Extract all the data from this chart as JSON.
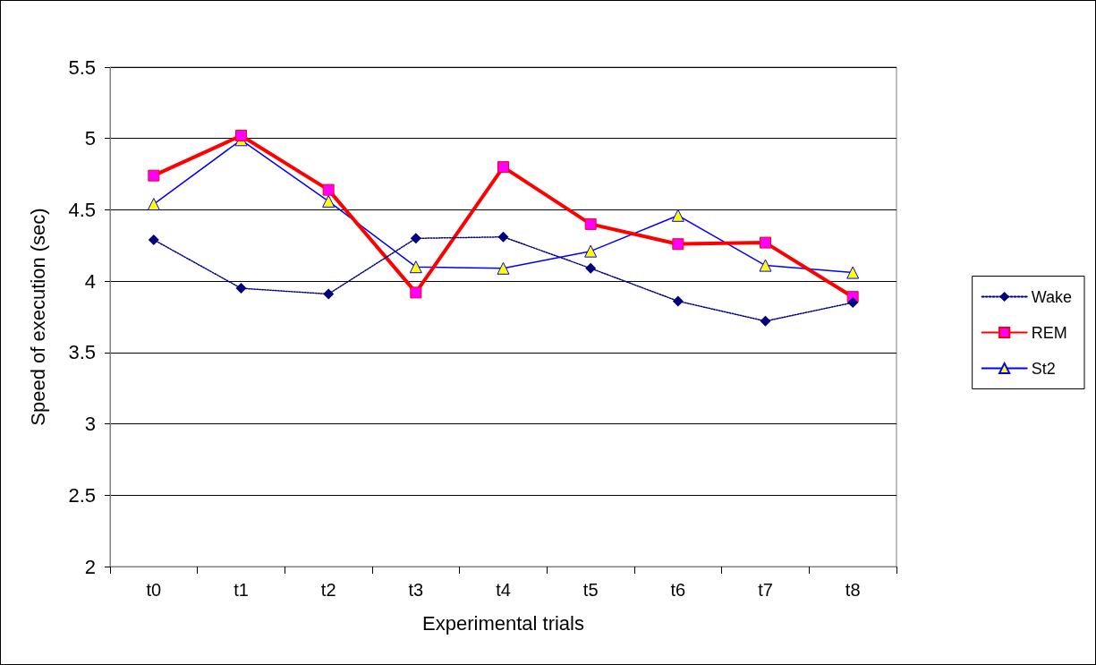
{
  "chart_data": {
    "type": "line",
    "xlabel": "Experimental trials",
    "ylabel": "Speed of execution (sec)",
    "categories": [
      "t0",
      "t1",
      "t2",
      "t3",
      "t4",
      "t5",
      "t6",
      "t7",
      "t8"
    ],
    "series": [
      {
        "name": "Wake",
        "color": "#000080",
        "marker": "diamond",
        "line_style": "dotted",
        "values": [
          4.29,
          3.95,
          3.91,
          4.3,
          4.31,
          4.09,
          3.86,
          3.72,
          3.85
        ]
      },
      {
        "name": "REM",
        "color": "#ff0000",
        "marker": "square",
        "line_style": "solid",
        "values": [
          4.74,
          5.02,
          4.64,
          3.92,
          4.8,
          4.4,
          4.26,
          4.27,
          3.89
        ]
      },
      {
        "name": "St2",
        "color": "#0000ff",
        "marker": "triangle",
        "line_style": "solid",
        "values": [
          4.54,
          4.99,
          4.56,
          4.1,
          4.09,
          4.21,
          4.46,
          4.11,
          4.06
        ]
      }
    ],
    "ylim": [
      2,
      5.5
    ],
    "yticks": [
      2,
      2.5,
      3,
      3.5,
      4,
      4.5,
      5,
      5.5
    ],
    "grid": "y",
    "legend": "right"
  }
}
